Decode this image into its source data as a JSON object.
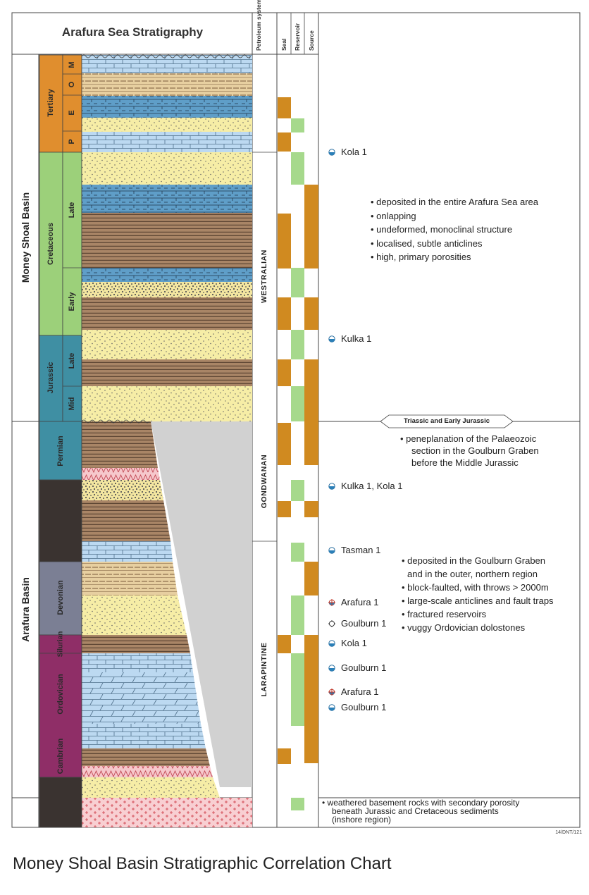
{
  "header": {
    "title": "Arafura Sea Stratigraphy",
    "petroleum_system": "Petroleum system",
    "seal": "Seal",
    "reservoir": "Reservoir",
    "source": "Source"
  },
  "basins": [
    "Money Shoal Basin",
    "Arafura Basin"
  ],
  "systems": [
    "Tertiary",
    "Cretaceous",
    "Jurassic",
    "Permian",
    "Devonian",
    "Silurian",
    "Ordovician",
    "Cambrian"
  ],
  "stages": {
    "tertiary": [
      "M",
      "O",
      "E",
      "P"
    ],
    "cretaceous": [
      "Late",
      "Early"
    ],
    "jurassic": [
      "Late",
      "Mid"
    ]
  },
  "petroleum_systems": [
    "WESTRALIAN",
    "GONDWANAN",
    "LARAPINTINE"
  ],
  "boundary_tag": "Triassic and Early Jurassic",
  "wells": [
    {
      "name": "Kola 1",
      "type": "gas"
    },
    {
      "name": "Kulka 1",
      "type": "gas"
    },
    {
      "name": "Kulka 1, Kola 1",
      "type": "gas"
    },
    {
      "name": "Tasman 1",
      "type": "gas"
    },
    {
      "name": "Arafura 1",
      "type": "oil-gas"
    },
    {
      "name": "Goulburn 1",
      "type": "dry"
    },
    {
      "name": "Kola 1",
      "type": "gas"
    },
    {
      "name": "Goulburn 1",
      "type": "gas"
    },
    {
      "name": "Arafura 1",
      "type": "oil-gas"
    },
    {
      "name": "Goulburn 1",
      "type": "gas"
    }
  ],
  "notes": {
    "money_shoal": [
      "• deposited in the entire Arafura Sea area",
      "• onlapping",
      "• undeformed, monoclinal structure",
      "• localised, subtle anticlines",
      "• high, primary porosities"
    ],
    "triassic": [
      "•  peneplanation of the Palaeozoic",
      "section in the Goulburn Graben",
      "before the Middle Jurassic"
    ],
    "arafura": [
      "• deposited in the Goulburn Graben",
      "and in the outer, northern region",
      "• block-faulted, with throws > 2000m",
      "• large-scale anticlines and fault traps",
      "• fractured reservoirs",
      "• vuggy Ordovician dolostones"
    ],
    "basement": [
      "•  weathered basement rocks with secondary porosity",
      "beneath Jurassic and Cretaceous sediments",
      "(inshore region)"
    ]
  },
  "colors": {
    "tertiary": "#e08e2e",
    "cretaceous": "#9cd07a",
    "jurassic": "#3f8fa3",
    "permian": "#3f8fa3",
    "devonian": "#7b7f94",
    "silurian_ordovician": "#8f2e67",
    "dark": "#3a3330",
    "seal": "#d08a20",
    "reservoir": "#a6d98c",
    "source": "#d08a20",
    "blue_lime": "#9fc9e8",
    "sand": "#f5eca0",
    "shale": "#a07c5d",
    "evap": "#f3c2c8"
  },
  "reference": "14/DNT/121",
  "caption": "Money Shoal Basin Stratigraphic Correlation Chart"
}
